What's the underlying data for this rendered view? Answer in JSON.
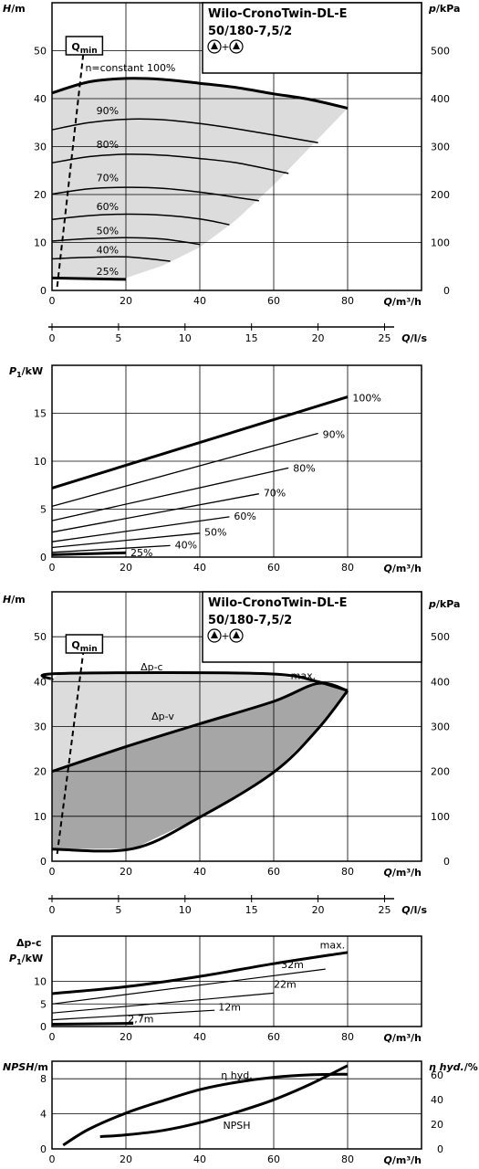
{
  "title": {
    "line1": "Wilo-CronoTwin-DL-E",
    "line2": "50/180-7,5/2",
    "pump_symbols": "▲+▲"
  },
  "axes": {
    "H_label": "H/m",
    "p_label": "p/kPa",
    "Q_label": "Q/m³/h",
    "Q_ls_label": "Q/l/s",
    "P1_label": "P1/kW",
    "dpc_label": "Δp-c",
    "NPSH_label": "NPSH/m",
    "eta_label": "η hyd./%"
  },
  "qmin": {
    "label": "Q",
    "sub": "min"
  },
  "chart_data": [
    {
      "type": "line",
      "id": "performance_n_constant",
      "title": "Wilo-CronoTwin-DL-E 50/180-7,5/2",
      "xlabel": "Q/m³/h",
      "ylabel": "H/m",
      "y2label": "p/kPa",
      "xlim": [
        0,
        100
      ],
      "ylim": [
        0,
        60
      ],
      "y2lim": [
        0,
        600
      ],
      "xticks": [
        0,
        20,
        40,
        60,
        80
      ],
      "yticks": [
        0,
        10,
        20,
        30,
        40,
        50
      ],
      "y2ticks": [
        0,
        100,
        200,
        300,
        400,
        500
      ],
      "series": [
        {
          "name": "n=constant 100%",
          "x": [
            0,
            10,
            20,
            30,
            40,
            50,
            60,
            70,
            80
          ],
          "values": [
            41.2,
            43.5,
            44.2,
            44,
            43.2,
            42.3,
            41,
            39.8,
            38
          ]
        },
        {
          "name": "90%",
          "x": [
            0,
            10,
            20,
            30,
            40,
            50,
            60,
            72
          ],
          "values": [
            33.5,
            35,
            35.7,
            35.6,
            34.8,
            33.7,
            32.4,
            30.8
          ]
        },
        {
          "name": "80%",
          "x": [
            0,
            10,
            20,
            30,
            40,
            50,
            64
          ],
          "values": [
            26.6,
            27.9,
            28.4,
            28.2,
            27.5,
            26.6,
            24.4
          ]
        },
        {
          "name": "70%",
          "x": [
            0,
            10,
            20,
            30,
            40,
            50,
            56
          ],
          "values": [
            20.1,
            21.2,
            21.5,
            21.3,
            20.5,
            19.4,
            18.7
          ]
        },
        {
          "name": "60%",
          "x": [
            0,
            10,
            20,
            30,
            40,
            48
          ],
          "values": [
            14.8,
            15.6,
            15.9,
            15.7,
            14.9,
            13.7
          ]
        },
        {
          "name": "50%",
          "x": [
            0,
            10,
            20,
            30,
            40
          ],
          "values": [
            10.3,
            10.8,
            11,
            10.7,
            9.6
          ]
        },
        {
          "name": "40%",
          "x": [
            0,
            10,
            20,
            32
          ],
          "values": [
            6.6,
            6.9,
            7,
            6.1
          ]
        },
        {
          "name": "25%",
          "x": [
            0,
            20
          ],
          "values": [
            2.6,
            2.3
          ]
        }
      ],
      "series_labels": [
        "n=constant 100%",
        "90%",
        "80%",
        "70%",
        "60%",
        "50%",
        "40%",
        "25%"
      ]
    },
    {
      "type": "line",
      "id": "flow_ls_axis",
      "xlabel": "Q/l/s",
      "xlim": [
        0,
        27.78
      ],
      "xticks": [
        0,
        5,
        10,
        15,
        20,
        25
      ]
    },
    {
      "type": "line",
      "id": "power_n_constant",
      "xlabel": "Q/m³/h",
      "ylabel": "P1/kW",
      "xlim": [
        0,
        100
      ],
      "ylim": [
        0,
        20
      ],
      "xticks": [
        0,
        20,
        40,
        60,
        80
      ],
      "yticks": [
        0,
        5,
        10,
        15
      ],
      "series": [
        {
          "name": "100%",
          "x": [
            0,
            80
          ],
          "values": [
            7.2,
            16.7
          ]
        },
        {
          "name": "90%",
          "x": [
            0,
            72
          ],
          "values": [
            5.3,
            12.9
          ]
        },
        {
          "name": "80%",
          "x": [
            0,
            64
          ],
          "values": [
            3.8,
            9.3
          ]
        },
        {
          "name": "70%",
          "x": [
            0,
            56
          ],
          "values": [
            2.6,
            6.6
          ]
        },
        {
          "name": "60%",
          "x": [
            0,
            48
          ],
          "values": [
            1.6,
            4.2
          ]
        },
        {
          "name": "50%",
          "x": [
            0,
            40
          ],
          "values": [
            1.0,
            2.5
          ]
        },
        {
          "name": "40%",
          "x": [
            0,
            32
          ],
          "values": [
            0.5,
            1.2
          ]
        },
        {
          "name": "25%",
          "x": [
            0,
            20
          ],
          "values": [
            0.25,
            0.45
          ]
        }
      ],
      "series_labels": [
        "100%",
        "90%",
        "80%",
        "70%",
        "60%",
        "50%",
        "40%",
        "25%"
      ]
    },
    {
      "type": "area",
      "id": "performance_dp",
      "title": "Wilo-CronoTwin-DL-E 50/180-7,5/2",
      "xlabel": "Q/m³/h",
      "ylabel": "H/m",
      "y2label": "p/kPa",
      "xlim": [
        0,
        100
      ],
      "ylim": [
        0,
        60
      ],
      "y2lim": [
        0,
        600
      ],
      "xticks": [
        0,
        20,
        40,
        60,
        80
      ],
      "yticks": [
        0,
        10,
        20,
        30,
        40,
        50
      ],
      "y2ticks": [
        0,
        100,
        200,
        300,
        400,
        500
      ],
      "series": [
        {
          "name": "Δp-c",
          "x": [
            0,
            2,
            57,
            72
          ],
          "values": [
            40.5,
            41.8,
            41.8,
            40
          ]
        },
        {
          "name": "Δp-v",
          "x": [
            0,
            20,
            40,
            60,
            72,
            80
          ],
          "values": [
            20,
            25.5,
            30.6,
            35.6,
            39.6,
            38
          ]
        },
        {
          "name": "max.",
          "x": [
            72,
            80
          ],
          "values": [
            40,
            38
          ]
        },
        {
          "name": "min",
          "x": [
            0,
            22,
            40,
            60,
            72,
            80
          ],
          "values": [
            2.7,
            2.8,
            9.8,
            19.8,
            29.5,
            38
          ]
        }
      ],
      "series_labels": [
        "Δp-c",
        "Δp-v",
        "max."
      ]
    },
    {
      "type": "line",
      "id": "flow_ls_axis_2",
      "xlabel": "Q/l/s",
      "xlim": [
        0,
        27.78
      ],
      "xticks": [
        0,
        5,
        10,
        15,
        20,
        25
      ]
    },
    {
      "type": "line",
      "id": "power_dpc",
      "xlabel": "Q/m³/h",
      "ylabel": "P1/kW",
      "xlim": [
        0,
        100
      ],
      "ylim": [
        0,
        20
      ],
      "xticks": [
        0,
        20,
        40,
        60,
        80
      ],
      "yticks": [
        0,
        5,
        10
      ],
      "series": [
        {
          "name": "max.",
          "x": [
            0,
            20,
            40,
            60,
            80
          ],
          "values": [
            7.3,
            8.8,
            11.1,
            13.9,
            16.4
          ]
        },
        {
          "name": "32m",
          "x": [
            0,
            74
          ],
          "values": [
            5,
            12.7
          ]
        },
        {
          "name": "22m",
          "x": [
            0,
            60
          ],
          "values": [
            3,
            7.4
          ]
        },
        {
          "name": "12m",
          "x": [
            0,
            44
          ],
          "values": [
            1.5,
            3.6
          ]
        },
        {
          "name": "2,7m",
          "x": [
            0,
            22
          ],
          "values": [
            0.5,
            0.7
          ]
        }
      ],
      "series_labels": [
        "max.",
        "32m",
        "22m",
        "12m",
        "2,7m"
      ]
    },
    {
      "type": "line",
      "id": "npsh_eta",
      "xlabel": "Q/m³/h",
      "ylabel": "NPSH/m",
      "y2label": "η hyd./%",
      "xlim": [
        0,
        100
      ],
      "ylim": [
        0,
        10
      ],
      "y2lim": [
        0,
        71
      ],
      "xticks": [
        0,
        20,
        40,
        60,
        80
      ],
      "yticks": [
        0,
        4,
        8
      ],
      "y2ticks": [
        0,
        20,
        40,
        60
      ],
      "series": [
        {
          "name": "η hyd.",
          "axis": "y2",
          "x": [
            3,
            10,
            20,
            30,
            40,
            50,
            60,
            70,
            80
          ],
          "values": [
            3,
            16,
            29,
            39,
            48,
            54,
            58,
            60,
            60.5
          ]
        },
        {
          "name": "NPSH",
          "axis": "y",
          "x": [
            13,
            20,
            30,
            40,
            50,
            60,
            70,
            80
          ],
          "values": [
            1.4,
            1.6,
            2.1,
            3.0,
            4.2,
            5.6,
            7.4,
            9.5
          ]
        }
      ],
      "series_labels": [
        "η hyd.",
        "NPSH"
      ]
    }
  ]
}
